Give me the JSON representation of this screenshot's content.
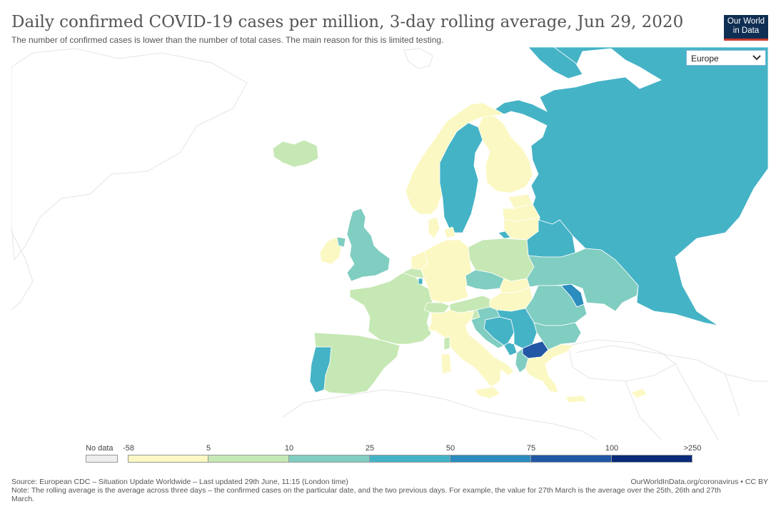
{
  "header": {
    "title": "Daily confirmed COVID-19 cases per million, 3-day rolling average, Jun 29, 2020",
    "subtitle": "The number of confirmed cases is lower than the number of total cases. The main reason for this is limited testing."
  },
  "logo": {
    "line1": "Our World",
    "line2": "in Data"
  },
  "region_select": {
    "value": "Europe"
  },
  "legend": {
    "no_data_label": "No data",
    "bins": [
      {
        "label": "-58",
        "color": "#fbf8c3"
      },
      {
        "label": "5",
        "color": "#c6e8b4"
      },
      {
        "label": "10",
        "color": "#80cdc1"
      },
      {
        "label": "25",
        "color": "#45b3c6"
      },
      {
        "label": "50",
        "color": "#2b8cbe"
      },
      {
        "label": "75",
        "color": "#2157a5"
      },
      {
        "label": "100",
        "color": "#0a2a7a"
      }
    ],
    "end_label": ">250",
    "no_data_color": "#eeeeee"
  },
  "footer": {
    "source": "Source: European CDC – Situation Update Worldwide – Last updated 29th June, 11:15 (London time)",
    "url": "OurWorldInData.org/coronavirus • CC BY",
    "note": "Note: The rolling average is the average across three days – the confirmed cases on the particular date, and the two previous days. For example, the value for 27th March is the average over the 25th, 26th and 27th March."
  },
  "colors": {
    "bin0": "#fbf8c3",
    "bin1": "#c6e8b4",
    "bin2": "#80cdc1",
    "bin3": "#45b3c6",
    "bin4": "#2b8cbe",
    "bin5": "#2157a5",
    "bin6": "#0a2a7a",
    "ocean": "#ffffff",
    "outline": "#ffffff",
    "land_outline": "#e2e2e2"
  }
}
